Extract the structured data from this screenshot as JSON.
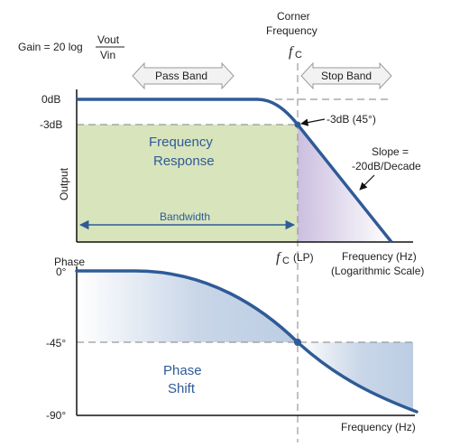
{
  "gain_formula": {
    "prefix": "Gain = 20 log",
    "numerator": "Vout",
    "denominator": "Vin"
  },
  "corner": {
    "title_line1": "Corner",
    "title_line2": "Frequency",
    "symbol": "f",
    "symbol_sub": "C",
    "lp_suffix": "(LP)"
  },
  "bands": {
    "pass": "Pass Band",
    "stop": "Stop Band"
  },
  "magnitude": {
    "y_axis_title": "Output",
    "tick_0db": "0dB",
    "tick_3db": "-3dB",
    "point_label": "-3dB (45°)",
    "region_line1": "Frequency",
    "region_line2": "Response",
    "slope_line1": "Slope =",
    "slope_line2": "-20dB/Decade",
    "bandwidth": "Bandwidth",
    "x_axis_line1": "Frequency (Hz)",
    "x_axis_line2": "(Logarithmic Scale)"
  },
  "phase": {
    "title": "Phase",
    "tick_0": "0°",
    "tick_45": "-45°",
    "tick_90": "-90°",
    "region_line1": "Phase",
    "region_line2": "Shift",
    "x_axis": "Frequency (Hz)"
  },
  "colors": {
    "curve": "#2f5b97",
    "pass_fill": "#d8e4bc",
    "stop_fill": "#e0d8ec",
    "phase_fill": "#c5d3e6",
    "arrow_fill": "#f2f2f2",
    "dash": "#999999"
  }
}
